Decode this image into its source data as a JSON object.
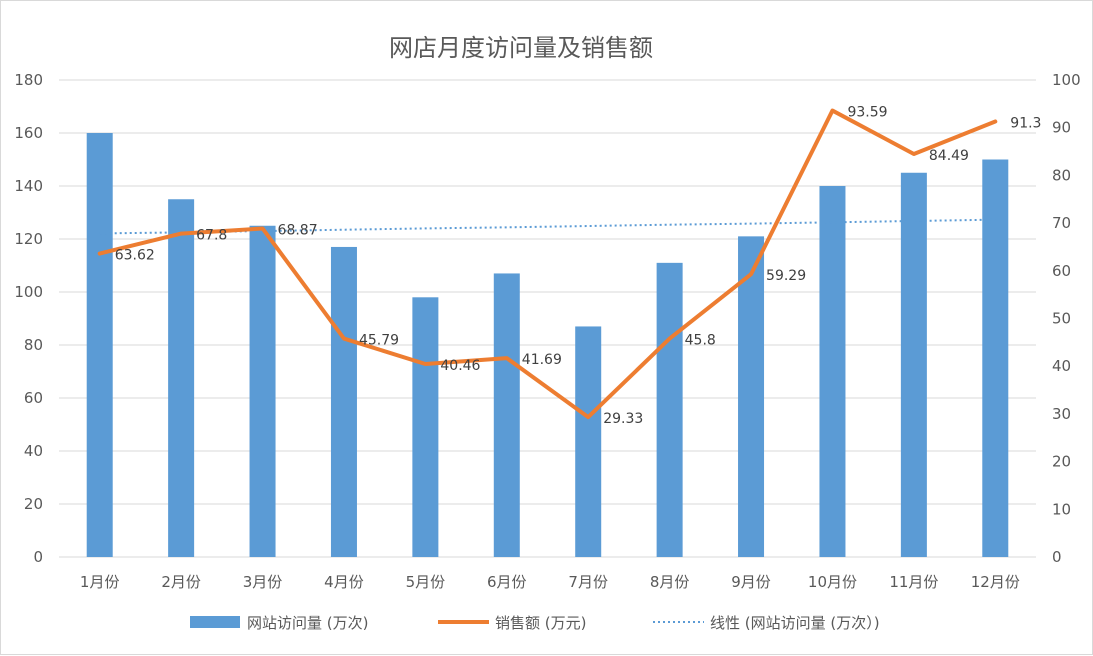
{
  "chart_data": {
    "type": "bar",
    "title": "网店月度访问量及销售额",
    "categories": [
      "1月份",
      "2月份",
      "3月份",
      "4月份",
      "5月份",
      "6月份",
      "7月份",
      "8月份",
      "9月份",
      "10月份",
      "11月份",
      "12月份"
    ],
    "y_left": {
      "min": 0,
      "max": 180,
      "step": 20,
      "ticks": [
        "0",
        "20",
        "40",
        "60",
        "80",
        "100",
        "120",
        "140",
        "160",
        "180"
      ]
    },
    "y_right": {
      "min": 0,
      "max": 100,
      "step": 10,
      "ticks": [
        "0",
        "10",
        "20",
        "30",
        "40",
        "50",
        "60",
        "70",
        "80",
        "90",
        "100"
      ]
    },
    "grid": true,
    "legend_position": "bottom",
    "series": [
      {
        "name": "网站访问量 (万次)",
        "kind": "bar",
        "axis": "left",
        "color": "#5b9bd5",
        "values": [
          160,
          135,
          125,
          117,
          98,
          107,
          87,
          111,
          121,
          140,
          145,
          150
        ]
      },
      {
        "name": "销售额 (万元)",
        "kind": "line",
        "axis": "right",
        "color": "#ed7d31",
        "values": [
          63.62,
          67.8,
          68.87,
          45.79,
          40.46,
          41.69,
          29.33,
          45.8,
          59.29,
          93.59,
          84.49,
          91.3
        ],
        "labels": [
          "63.62",
          "67.8",
          "68.87",
          "45.79",
          "40.46",
          "41.69",
          "29.33",
          "45.8",
          "59.29",
          "93.59",
          "84.49",
          "91.3"
        ]
      },
      {
        "name": "线性 (网站访问量 (万次）)",
        "kind": "trendline",
        "axis": "left",
        "color": "#5b9bd5",
        "values": [
          122.1,
          122.5,
          123.0,
          123.5,
          124.0,
          124.4,
          124.9,
          125.4,
          125.8,
          126.3,
          126.8,
          127.3
        ]
      }
    ]
  }
}
